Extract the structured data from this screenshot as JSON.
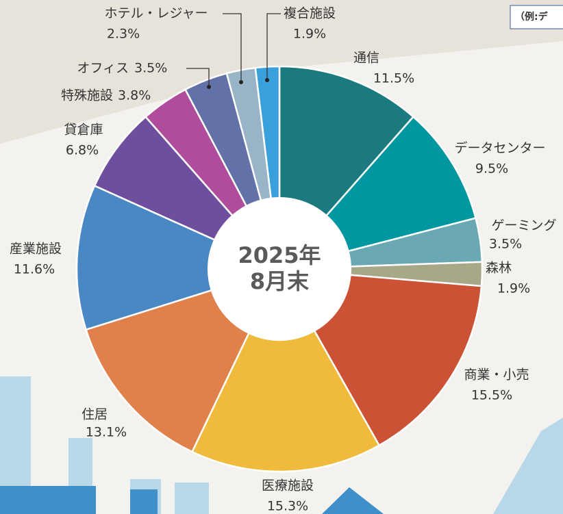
{
  "chart_data": {
    "type": "pie",
    "annotation": "（例:デ",
    "center_label": [
      "2025年",
      "8月末"
    ],
    "categories": [
      "通信",
      "データセンター",
      "ゲーミング",
      "森林",
      "商業・小売",
      "医療施設",
      "住居",
      "産業施設",
      "貸倉庫",
      "特殊施設",
      "オフィス",
      "ホテル・レジャー",
      "複合施設"
    ],
    "values": [
      11.5,
      9.5,
      3.5,
      1.9,
      15.5,
      15.3,
      13.1,
      11.6,
      6.8,
      3.8,
      3.5,
      2.3,
      1.9
    ],
    "value_labels": [
      "11.5%",
      "9.5%",
      "3.5%",
      "1.9%",
      "15.5%",
      "15.3%",
      "13.1%",
      "11.6%",
      "6.8%",
      "3.8%",
      "3.5%",
      "2.3%",
      "1.9%"
    ],
    "colors": [
      "#1a7a80",
      "#0097a0",
      "#6aa9b3",
      "#a8a888",
      "#cc5236",
      "#f0bb3c",
      "#e0804a",
      "#4a88c4",
      "#6e4f9e",
      "#b04c9c",
      "#6272a8",
      "#98b4c6",
      "#3aa0dc"
    ]
  }
}
